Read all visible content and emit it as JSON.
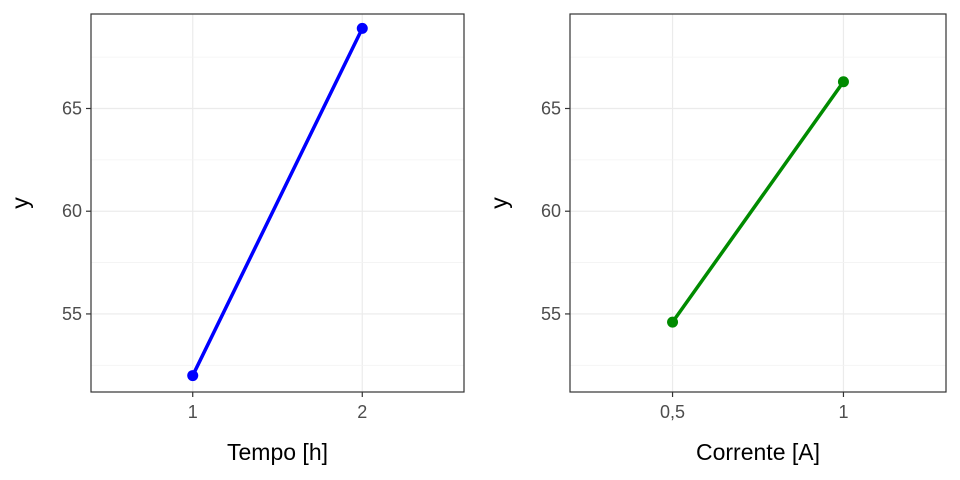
{
  "chart_data": [
    {
      "type": "line",
      "xlabel": "Tempo [h]",
      "ylabel": "y",
      "categories": [
        "1",
        "2"
      ],
      "series": [
        {
          "color": "#0000ff",
          "values": [
            52.0,
            68.9
          ]
        }
      ],
      "xlim": [
        0.4,
        2.6
      ],
      "ylim": [
        51.2,
        69.6
      ],
      "yticks": [
        55,
        60,
        65
      ],
      "grid": true,
      "legend": "none"
    },
    {
      "type": "line",
      "xlabel": "Corrente [A]",
      "ylabel": "y",
      "categories": [
        "0,5",
        "1"
      ],
      "series": [
        {
          "color": "#008b00",
          "values": [
            54.6,
            66.3
          ]
        }
      ],
      "xlim": [
        0.4,
        2.6
      ],
      "ylim": [
        51.2,
        69.6
      ],
      "yticks": [
        55,
        60,
        65
      ],
      "grid": true,
      "legend": "none"
    }
  ]
}
